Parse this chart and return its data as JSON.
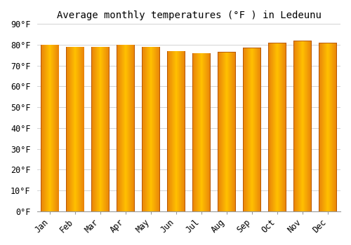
{
  "title": "Average monthly temperatures (°F ) in Ledeunu",
  "months": [
    "Jan",
    "Feb",
    "Mar",
    "Apr",
    "May",
    "Jun",
    "Jul",
    "Aug",
    "Sep",
    "Oct",
    "Nov",
    "Dec"
  ],
  "values": [
    80.0,
    79.0,
    79.0,
    80.0,
    79.0,
    77.0,
    76.0,
    76.5,
    78.5,
    81.0,
    82.0,
    81.0
  ],
  "ylim": [
    0,
    90
  ],
  "yticks": [
    0,
    10,
    20,
    30,
    40,
    50,
    60,
    70,
    80,
    90
  ],
  "ytick_labels": [
    "0°F",
    "10°F",
    "20°F",
    "30°F",
    "40°F",
    "50°F",
    "60°F",
    "70°F",
    "80°F",
    "90°F"
  ],
  "bar_color_left": "#E8820A",
  "bar_color_center": "#FFB92A",
  "bar_color_right": "#E8820A",
  "bar_edge_color": "#C06000",
  "background_color": "#FFFFFF",
  "grid_color": "#CCCCCC",
  "title_fontsize": 10,
  "tick_fontsize": 8.5
}
